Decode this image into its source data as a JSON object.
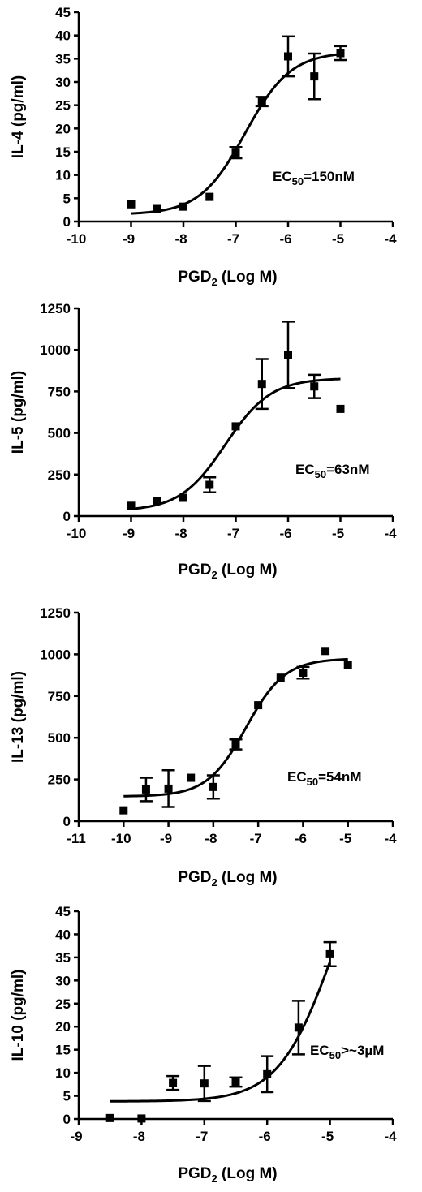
{
  "chart_data": [
    {
      "type": "scatter",
      "ylabel": "IL-4 (pg/ml)",
      "xlabel": {
        "main": "PGD",
        "sub": "2",
        "rest": " (Log M)"
      },
      "annotation": {
        "pre": "EC",
        "sub": "50",
        "post": "=150nM"
      },
      "xlim": [
        -10,
        -4
      ],
      "xticks": [
        "-10",
        "-9",
        "-8",
        "-7",
        "-6",
        "-5",
        "-4"
      ],
      "ylim": [
        0,
        45
      ],
      "yticks": [
        "0",
        "5",
        "10",
        "15",
        "20",
        "25",
        "30",
        "35",
        "40",
        "45"
      ],
      "points": [
        {
          "x": -9.0,
          "y": 3.7
        },
        {
          "x": -8.5,
          "y": 2.7
        },
        {
          "x": -8.0,
          "y": 3.2
        },
        {
          "x": -7.5,
          "y": 5.3
        },
        {
          "x": -7.0,
          "y": 14.8,
          "err": 1.2
        },
        {
          "x": -6.5,
          "y": 25.8,
          "err": 1.0
        },
        {
          "x": -6.0,
          "y": 35.5,
          "err": 4.3
        },
        {
          "x": -5.5,
          "y": 31.2,
          "err": 4.9
        },
        {
          "x": -5.0,
          "y": 36.2,
          "err": 1.5
        }
      ],
      "curve": {
        "bottom": 1.5,
        "top": 36.5,
        "logec50": -6.82,
        "hill": 1.0,
        "xfrom": -9.0,
        "xto": -5.0
      }
    },
    {
      "type": "scatter",
      "ylabel": "IL-5 (pg/ml)",
      "xlabel": {
        "main": "PGD",
        "sub": "2",
        "rest": " (Log M)"
      },
      "annotation": {
        "pre": "EC",
        "sub": "50",
        "post": "=63nM"
      },
      "xlim": [
        -10,
        -4
      ],
      "xticks": [
        "-10",
        "-9",
        "-8",
        "-7",
        "-6",
        "-5",
        "-4"
      ],
      "ylim": [
        0,
        1250
      ],
      "yticks": [
        "0",
        "250",
        "500",
        "750",
        "1000",
        "1250"
      ],
      "points": [
        {
          "x": -9.0,
          "y": 62
        },
        {
          "x": -8.5,
          "y": 90
        },
        {
          "x": -8.0,
          "y": 110
        },
        {
          "x": -7.5,
          "y": 188,
          "err": 45
        },
        {
          "x": -7.0,
          "y": 540
        },
        {
          "x": -6.5,
          "y": 795,
          "err": 150
        },
        {
          "x": -6.0,
          "y": 970,
          "err": 200
        },
        {
          "x": -5.5,
          "y": 780,
          "err": 70
        },
        {
          "x": -5.0,
          "y": 645
        }
      ],
      "curve": {
        "bottom": 30,
        "top": 830,
        "logec50": -7.2,
        "hill": 1.0,
        "xfrom": -9.0,
        "xto": -5.0
      }
    },
    {
      "type": "scatter",
      "ylabel": "IL-13 (pg/ml)",
      "xlabel": {
        "main": "PGD",
        "sub": "2",
        "rest": " (Log M)"
      },
      "annotation": {
        "pre": "EC",
        "sub": "50",
        "post": "=54nM"
      },
      "xlim": [
        -11,
        -4
      ],
      "xticks": [
        "-11",
        "-10",
        "-9",
        "-8",
        "-7",
        "-6",
        "-5",
        "-4"
      ],
      "ylim": [
        0,
        1250
      ],
      "yticks": [
        "0",
        "250",
        "500",
        "750",
        "1000",
        "1250"
      ],
      "points": [
        {
          "x": -10.0,
          "y": 65
        },
        {
          "x": -9.5,
          "y": 190,
          "err": 70
        },
        {
          "x": -9.0,
          "y": 195,
          "err": 110
        },
        {
          "x": -8.5,
          "y": 260
        },
        {
          "x": -8.0,
          "y": 205,
          "err": 70
        },
        {
          "x": -7.5,
          "y": 460,
          "err": 30
        },
        {
          "x": -7.0,
          "y": 695
        },
        {
          "x": -6.5,
          "y": 860
        },
        {
          "x": -6.0,
          "y": 890,
          "err": 35
        },
        {
          "x": -5.5,
          "y": 1020
        },
        {
          "x": -5.0,
          "y": 935
        }
      ],
      "curve": {
        "bottom": 148,
        "top": 975,
        "logec50": -7.27,
        "hill": 1.0,
        "xfrom": -10.0,
        "xto": -5.0
      }
    },
    {
      "type": "scatter",
      "ylabel": "IL-10 (pg/ml)",
      "xlabel": {
        "main": "PGD",
        "sub": "2",
        "rest": " (Log M)"
      },
      "annotation": {
        "pre": "EC",
        "sub": "50",
        "post": ">~3µM"
      },
      "xlim": [
        -9,
        -4
      ],
      "xticks": [
        "-9",
        "-8",
        "-7",
        "-6",
        "-5",
        "-4"
      ],
      "ylim": [
        0,
        45
      ],
      "yticks": [
        "0",
        "5",
        "10",
        "15",
        "20",
        "25",
        "30",
        "35",
        "40",
        "45"
      ],
      "points": [
        {
          "x": -8.5,
          "y": 0.2
        },
        {
          "x": -8.0,
          "y": 0.1
        },
        {
          "x": -7.5,
          "y": 7.8,
          "err": 1.5
        },
        {
          "x": -7.0,
          "y": 7.7,
          "err": 3.8
        },
        {
          "x": -6.5,
          "y": 8.0,
          "err": 1.0
        },
        {
          "x": -6.0,
          "y": 9.7,
          "err": 3.9
        },
        {
          "x": -5.5,
          "y": 19.8,
          "err": 5.8
        },
        {
          "x": -5.0,
          "y": 35.7,
          "err": 2.6
        }
      ],
      "curve": {
        "bottom": 3.8,
        "top": 68,
        "logec50": -4.95,
        "hill": 1.0,
        "xfrom": -8.5,
        "xto": -5.0
      }
    }
  ]
}
